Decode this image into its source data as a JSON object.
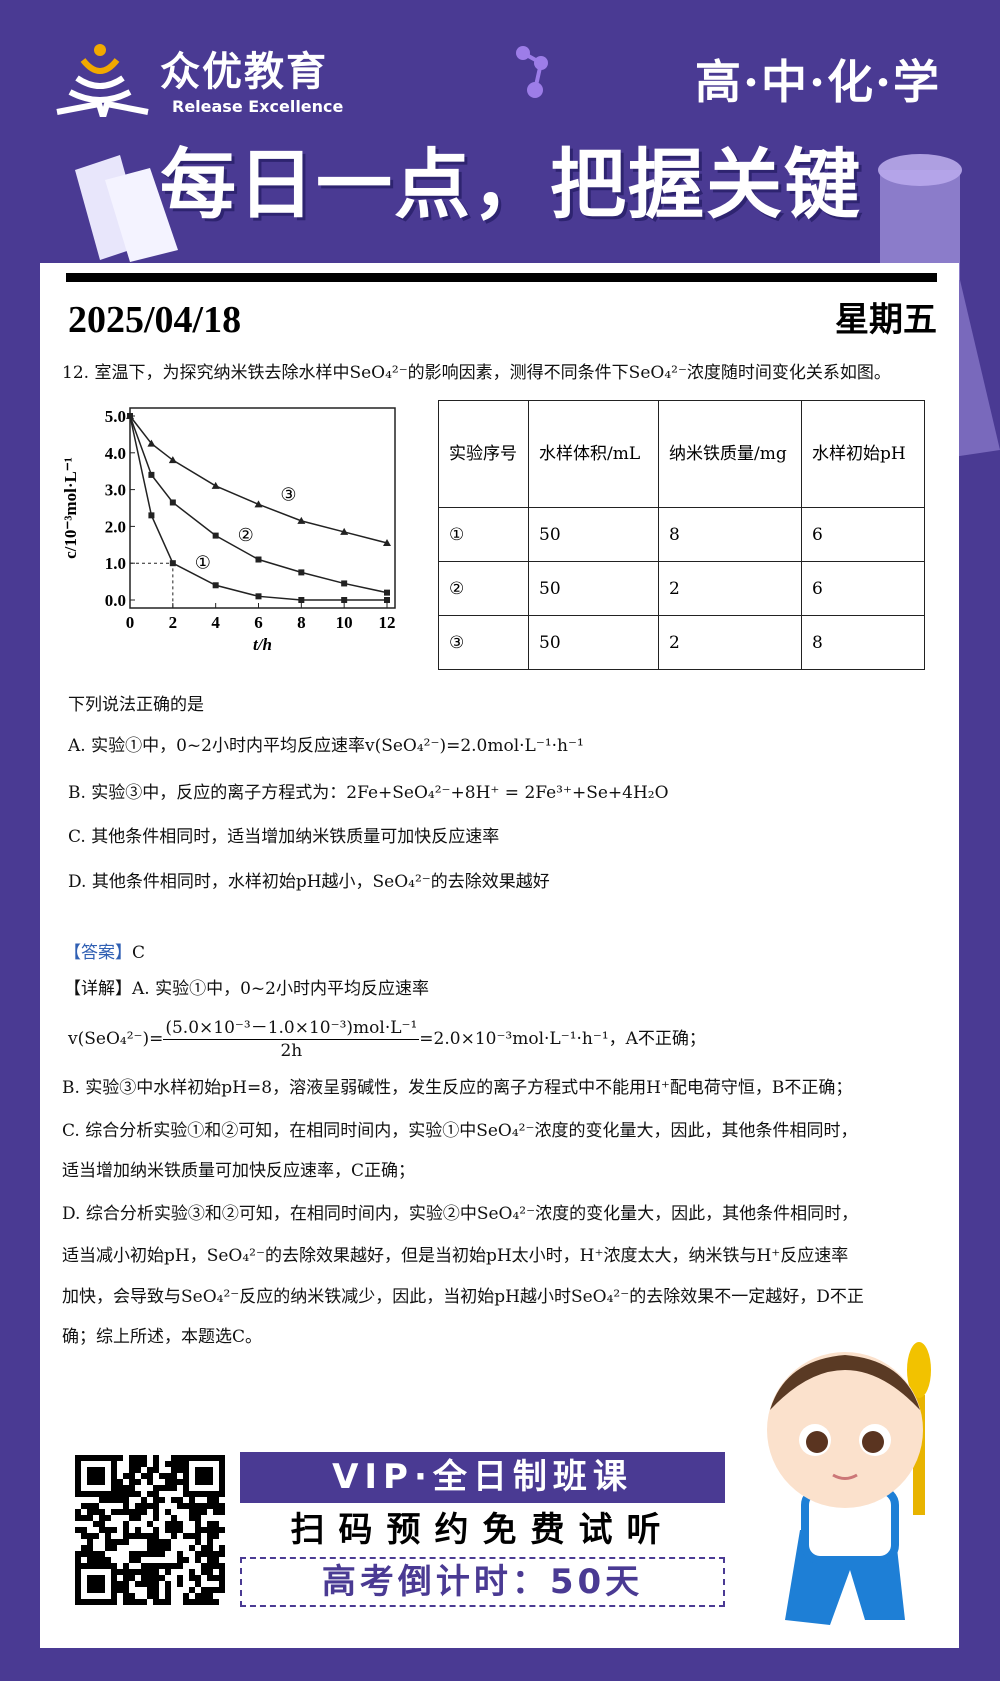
{
  "header": {
    "brand": "众优教育",
    "brand_sub": "Release Excellence",
    "subject": "高·中·化·学",
    "banner": "每日一点，把握关键",
    "date": "2025/04/18",
    "weekday": "星期五"
  },
  "question": {
    "stem": "12. 室温下，为探究纳米铁去除水样中SeO₄²⁻的影响因素，测得不同条件下SeO₄²⁻浓度随时间变化关系如图。",
    "prompt": "下列说法正确的是",
    "options": [
      "A. 实验①中，0~2小时内平均反应速率v(SeO₄²⁻)=2.0mol·L⁻¹·h⁻¹",
      "B. 实验③中，反应的离子方程式为：2Fe+SeO₄²⁻+8H⁺ = 2Fe³⁺+Se+4H₂O",
      "C. 其他条件相同时，适当增加纳米铁质量可加快反应速率",
      "D. 其他条件相同时，水样初始pH越小，SeO₄²⁻的去除效果越好"
    ]
  },
  "table": {
    "headers": [
      "实验序号",
      "水样体积/mL",
      "纳米铁质量/mg",
      "水样初始pH"
    ],
    "rows": [
      [
        "①",
        "50",
        "8",
        "6"
      ],
      [
        "②",
        "50",
        "2",
        "6"
      ],
      [
        "③",
        "50",
        "2",
        "8"
      ]
    ]
  },
  "chart_data": {
    "type": "line",
    "xlabel": "t/h",
    "ylabel": "c/10⁻³mol·L⁻¹",
    "xlim": [
      0,
      12
    ],
    "ylim": [
      0,
      5.0
    ],
    "x_ticks": [
      "0",
      "2",
      "4",
      "6",
      "8",
      "10",
      "12"
    ],
    "y_ticks": [
      "0.0",
      "1.0",
      "2.0",
      "3.0",
      "4.0",
      "5.0"
    ],
    "x": [
      0,
      1,
      2,
      4,
      6,
      8,
      10,
      12
    ],
    "series": [
      {
        "name": "①",
        "marker": "square",
        "values": [
          5.0,
          2.3,
          1.0,
          0.4,
          0.1,
          0.0,
          0.0,
          0.0
        ]
      },
      {
        "name": "②",
        "marker": "square",
        "values": [
          5.0,
          3.4,
          2.65,
          1.75,
          1.1,
          0.75,
          0.45,
          0.2
        ]
      },
      {
        "name": "③",
        "marker": "triangle",
        "values": [
          5.0,
          4.25,
          3.8,
          3.1,
          2.6,
          2.15,
          1.85,
          1.55
        ]
      }
    ],
    "annotation": "dashed guide at t=2, c=1.0"
  },
  "answer": {
    "label": "【答案】",
    "value": "C",
    "detail_label": "【详解】",
    "detail_a": "A. 实验①中，0~2小时内平均反应速率",
    "formula_left": "v(SeO₄²⁻)=",
    "formula_num": "(5.0×10⁻³－1.0×10⁻³)mol·L⁻¹",
    "formula_den": "2h",
    "formula_right": "=2.0×10⁻³mol·L⁻¹·h⁻¹，A不正确；",
    "lines": [
      "B. 实验③中水样初始pH=8，溶液呈弱碱性，发生反应的离子方程式中不能用H⁺配电荷守恒，B不正确；",
      "C. 综合分析实验①和②可知，在相同时间内，实验①中SeO₄²⁻浓度的变化量大，因此，其他条件相同时，",
      "适当增加纳米铁质量可加快反应速率，C正确；",
      "D. 综合分析实验③和②可知，在相同时间内，实验②中SeO₄²⁻浓度的变化量大，因此，其他条件相同时，",
      "适当减小初始pH，SeO₄²⁻的去除效果越好，但是当初始pH太小时，H⁺浓度太大，纳米铁与H⁺反应速率",
      "加快，会导致与SeO₄²⁻反应的纳米铁减少，因此，当初始pH越小时SeO₄²⁻的去除效果不一定越好，D不正",
      "确；综上所述，本题选C。"
    ]
  },
  "footer": {
    "vip": "VIP·全日制班课",
    "scan": "扫码预约免费试听",
    "countdown": "高考倒计时：50天"
  },
  "colors": {
    "brand": "#4a3a93",
    "answer_label": "#2f5fb3"
  }
}
